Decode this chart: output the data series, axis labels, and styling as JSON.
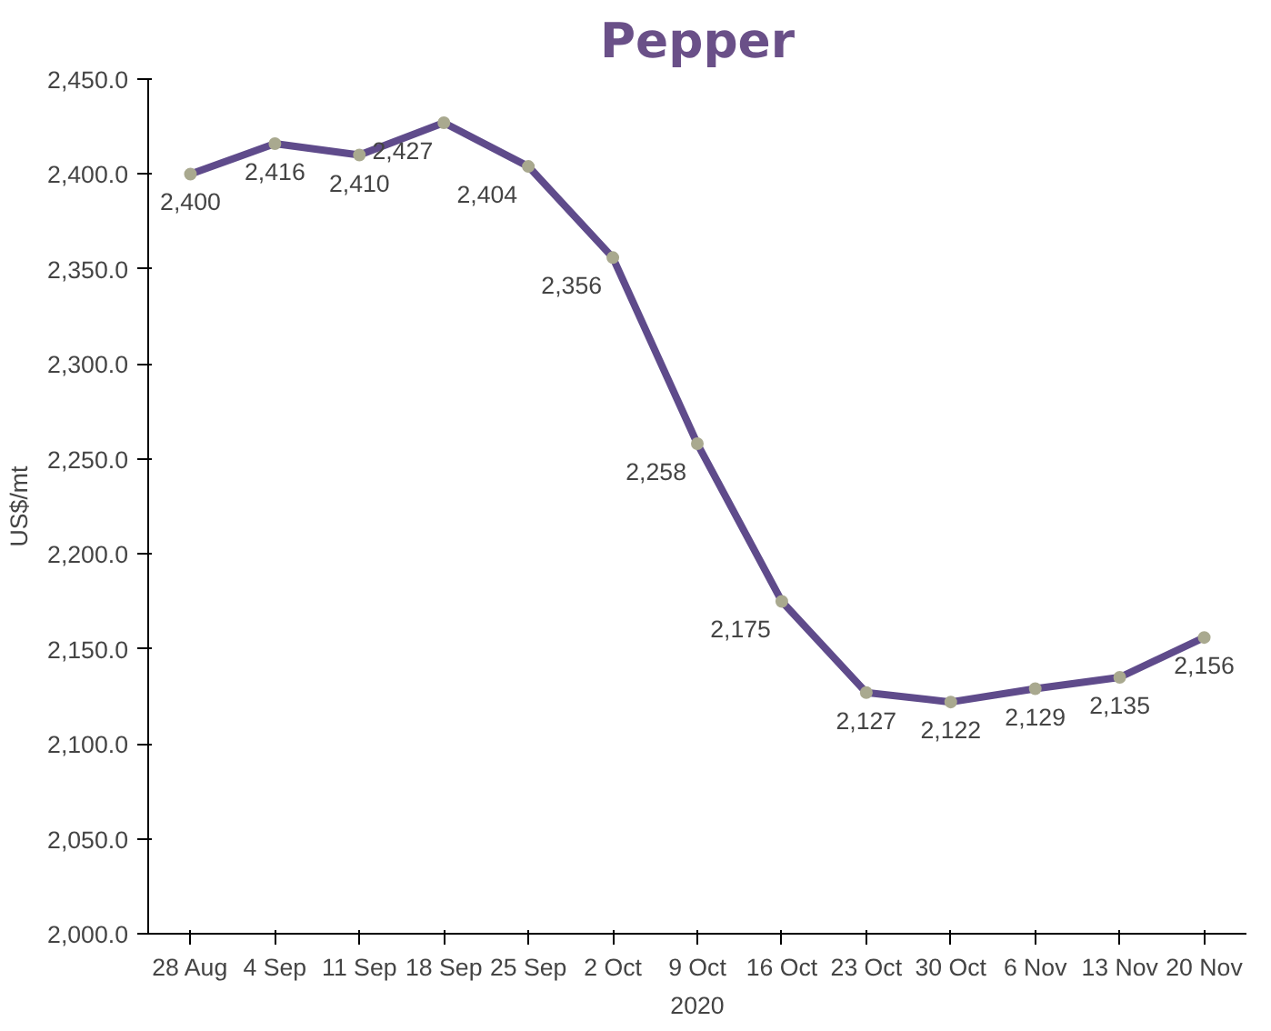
{
  "chart_data": {
    "type": "line",
    "title": "Pepper",
    "xlabel": "2020",
    "ylabel": "US$/mt",
    "categories": [
      "28 Aug",
      "4 Sep",
      "11 Sep",
      "18 Sep",
      "25 Sep",
      "2 Oct",
      "9 Oct",
      "16 Oct",
      "23 Oct",
      "30 Oct",
      "6 Nov",
      "13 Nov",
      "20 Nov"
    ],
    "series": [
      {
        "color": "#5f4b8b",
        "values": [
          2400,
          2416,
          2410,
          2427,
          2404,
          2356,
          2258,
          2175,
          2127,
          2122,
          2129,
          2135,
          2156
        ],
        "value_labels": [
          "2,400",
          "2,416",
          "2,410",
          "2,427",
          "2,404",
          "2,356",
          "2,258",
          "2,175",
          "2,127",
          "2,122",
          "2,129",
          "2,135",
          "2,156"
        ]
      }
    ],
    "ylim": [
      2000,
      2450
    ],
    "yticks": [
      {
        "value": 2000,
        "label": "2,000.0"
      },
      {
        "value": 2050,
        "label": "2,050.0"
      },
      {
        "value": 2100,
        "label": "2,100.0"
      },
      {
        "value": 2150,
        "label": "2,150.0"
      },
      {
        "value": 2200,
        "label": "2,200.0"
      },
      {
        "value": 2250,
        "label": "2,250.0"
      },
      {
        "value": 2300,
        "label": "2,300.0"
      },
      {
        "value": 2350,
        "label": "2,350.0"
      },
      {
        "value": 2400,
        "label": "2,400.0"
      },
      {
        "value": 2450,
        "label": "2,450.0"
      }
    ],
    "grid": false,
    "marker": "circle",
    "line_style": "solid"
  }
}
